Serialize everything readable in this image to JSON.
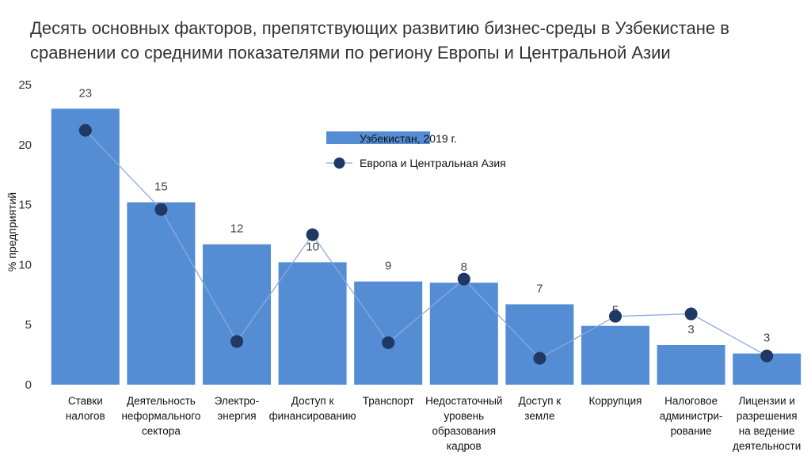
{
  "title": "Десять основных факторов, препятствующих развитию бизнес-среды в Узбекистане в сравнении со средними показателями по региону Европы и Центральной Азии",
  "chart_data": {
    "type": "bar",
    "ylabel": "% предприятий",
    "ylim": [
      0,
      25
    ],
    "yticks": [
      0,
      5,
      10,
      15,
      20,
      25
    ],
    "grid": false,
    "legend_position": "top-center",
    "categories": [
      [
        "Ставки",
        "налогов"
      ],
      [
        "Деятельность",
        "неформального",
        "сектора"
      ],
      [
        "Электро-",
        "энергия"
      ],
      [
        "Доступ к",
        "финансированию"
      ],
      [
        "Транспорт"
      ],
      [
        "Недостаточный",
        "уровень",
        "образования",
        "кадров"
      ],
      [
        "Доступ к",
        "земле"
      ],
      [
        "Коррупция"
      ],
      [
        "Налоговое",
        "администри-",
        "рование"
      ],
      [
        "Лицензии и",
        "разрешения",
        "на ведение",
        "деятельности"
      ]
    ],
    "series": [
      {
        "name": "Узбекистан, 2019 г.",
        "type": "bar",
        "color": "#548dd4",
        "values": [
          23,
          15.2,
          11.7,
          10.2,
          8.6,
          8.5,
          6.7,
          4.9,
          3.3,
          2.6
        ],
        "labels": [
          "23",
          "15",
          "12",
          "10",
          "9",
          "8",
          "7",
          "5",
          "3",
          "3"
        ]
      },
      {
        "name": "Европа и Центральная Азия",
        "type": "line",
        "color": "#1f3864",
        "line_color": "#8ea9db",
        "values": [
          21.2,
          14.6,
          3.6,
          12.5,
          3.5,
          8.8,
          2.2,
          5.7,
          5.9,
          2.4
        ]
      }
    ]
  }
}
